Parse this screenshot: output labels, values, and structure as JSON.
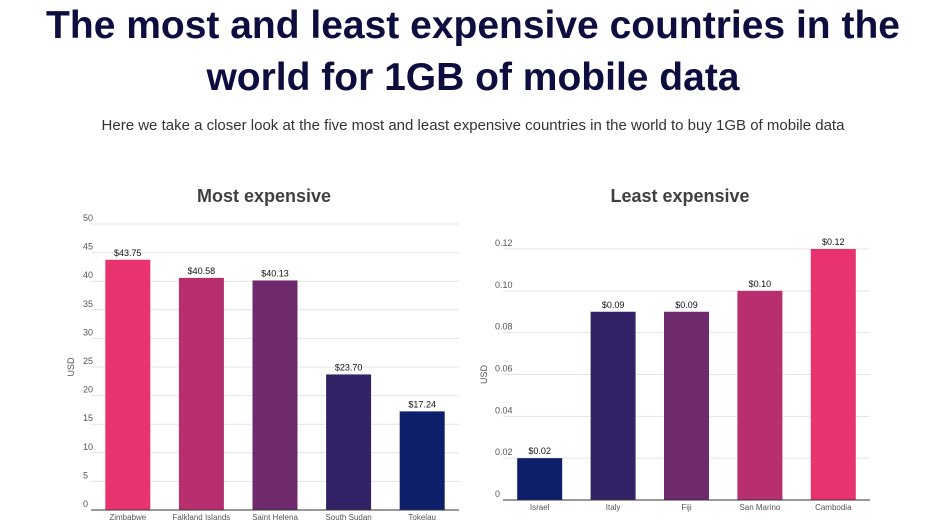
{
  "title": "The most and least expensive countries in the world for 1GB of mobile data",
  "subtitle": "Here we take a closer look at the five most and least expensive countries in the world to buy 1GB of mobile data",
  "chart_data": [
    {
      "type": "bar",
      "title": "Most expensive",
      "ylabel": "USD",
      "xlabel": "",
      "categories": [
        "Zimbabwe",
        "Falkland Islands",
        "Saint Helena",
        "South Sudan",
        "Tokelau"
      ],
      "values": [
        43.75,
        40.58,
        40.13,
        23.7,
        17.24
      ],
      "data_labels": [
        "$43.75",
        "$40.58",
        "$40.13",
        "$23.70",
        "$17.24"
      ],
      "colors": [
        "#e8336f",
        "#b82f6e",
        "#6e2a6c",
        "#332366",
        "#0d1f6b"
      ],
      "ylim": [
        0,
        50
      ],
      "yticks": [
        "0",
        "5",
        "10",
        "15",
        "20",
        "25",
        "30",
        "35",
        "40",
        "45",
        "50"
      ],
      "grid": true
    },
    {
      "type": "bar",
      "title": "Least expensive",
      "ylabel": "USD",
      "xlabel": "",
      "categories": [
        "Israel",
        "Italy",
        "Fiji",
        "San Marino",
        "Cambodia"
      ],
      "values": [
        0.02,
        0.09,
        0.09,
        0.1,
        0.12
      ],
      "data_labels": [
        "$0.02",
        "$0.09",
        "$0.09",
        "$0.10",
        "$0.12"
      ],
      "colors": [
        "#0d1f6b",
        "#332366",
        "#6e2a6c",
        "#b82f6e",
        "#e8336f"
      ],
      "ylim": [
        0,
        0.12
      ],
      "yticks": [
        "0",
        "0.02",
        "0.04",
        "0.06",
        "0.08",
        "0.10",
        "0.12"
      ],
      "grid": true
    }
  ]
}
